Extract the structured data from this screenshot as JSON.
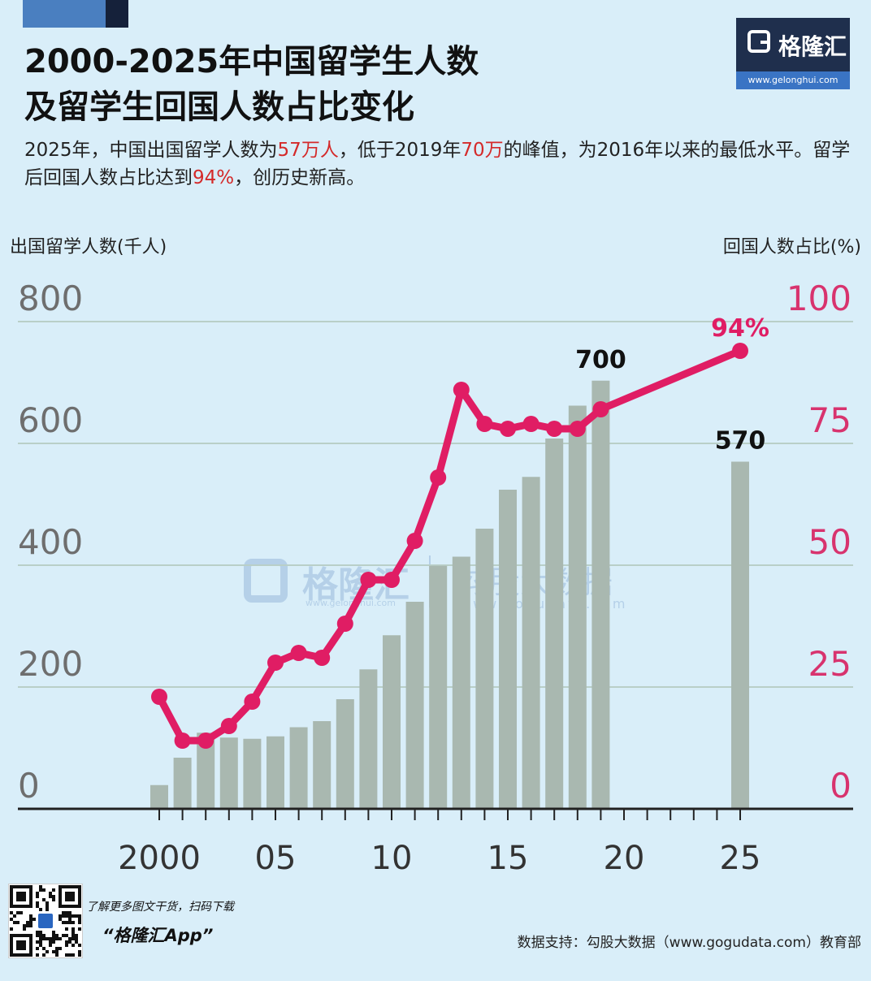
{
  "title": {
    "line1": "2000-2025年中国留学生人数",
    "line2": "及留学生回国人数占比变化"
  },
  "logo": {
    "name": "格隆汇",
    "url": "www.gelonghui.com"
  },
  "subtitle": {
    "seg1": "2025年，中国出国留学人数为",
    "hl1": "57万人",
    "seg2": "，低于2019年",
    "hl2": "70万",
    "seg3": "的峰值，为2016年以来的最低水平。留学后回国人数占比达到",
    "hl3": "94%",
    "seg4": "，创历史新高。"
  },
  "watermark": {
    "name1": "格隆汇",
    "url1": "www.gelonghui.com",
    "name2": "勾股大数据",
    "url2": "www.gogudata.com"
  },
  "promo": {
    "line1": "了解更多图文干货，扫码下载",
    "line2": "“格隆汇App”"
  },
  "source": "数据支持：勾股大数据（www.gogudata.com）教育部",
  "colors": {
    "bars": "#a9b8b0",
    "line": "#e01d64",
    "grid": "#b9cfc8",
    "right_axis": "#d8336e",
    "left_axis": "#6e6e6e",
    "background": "#d9eef9"
  },
  "chart_data": {
    "type": "bar+line",
    "x_tick_labels": [
      "2000",
      "05",
      "10",
      "15",
      "20",
      "25"
    ],
    "left_axis": {
      "title": "出国留学人数(千人)",
      "ylim": [
        0,
        800
      ],
      "ticks": [
        0,
        200,
        400,
        600,
        800
      ]
    },
    "right_axis": {
      "title": "回国人数占比(%)",
      "ylim": [
        0,
        100
      ],
      "ticks": [
        0,
        25,
        50,
        75,
        100
      ]
    },
    "grid": true,
    "series": [
      {
        "type": "bar",
        "axis": "left",
        "x": [
          2000,
          2001,
          2002,
          2003,
          2004,
          2005,
          2006,
          2007,
          2008,
          2009,
          2010,
          2011,
          2012,
          2013,
          2014,
          2015,
          2016,
          2017,
          2018,
          2019,
          2025
        ],
        "values": [
          39,
          84,
          125,
          117,
          115,
          119,
          134,
          144,
          180,
          229,
          285,
          340,
          399,
          414,
          460,
          524,
          545,
          608,
          662,
          703,
          570
        ],
        "data_labels": {
          "2019": "700",
          "2025": "570"
        }
      },
      {
        "type": "line",
        "axis": "right",
        "x": [
          2000,
          2001,
          2002,
          2003,
          2004,
          2005,
          2006,
          2007,
          2008,
          2009,
          2010,
          2011,
          2012,
          2013,
          2014,
          2015,
          2016,
          2017,
          2018,
          2019,
          2025
        ],
        "values": [
          23,
          14,
          14,
          17,
          22,
          30,
          32,
          31,
          38,
          47,
          47,
          55,
          68,
          86,
          79,
          78,
          79,
          78,
          78,
          82,
          94
        ],
        "data_labels": {
          "2025": "94%"
        }
      }
    ]
  }
}
